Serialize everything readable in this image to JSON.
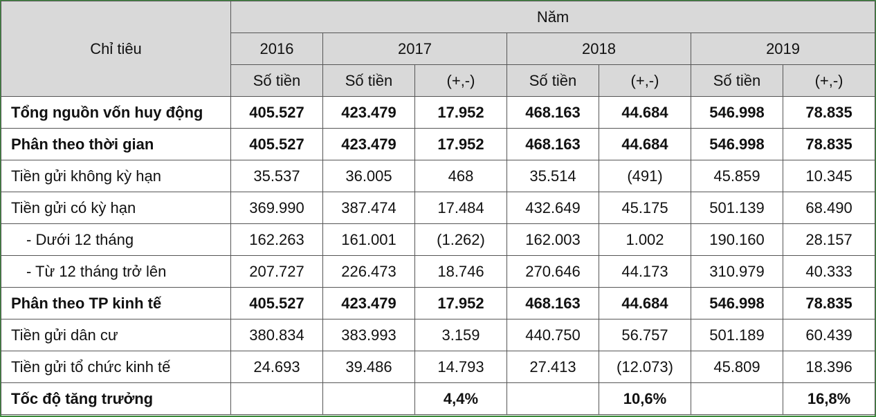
{
  "header": {
    "indicator": "Chỉ tiêu",
    "nam": "Năm",
    "years": [
      "2016",
      "2017",
      "2018",
      "2019"
    ],
    "so_tien": "Số tiền",
    "delta": "(+,-)"
  },
  "rows": [
    {
      "label": "Tổng nguồn vốn huy động",
      "bold": true,
      "v": [
        "405.527",
        "423.479",
        "17.952",
        "468.163",
        "44.684",
        "546.998",
        "78.835"
      ]
    },
    {
      "label": "Phân theo thời gian",
      "bold": true,
      "v": [
        "405.527",
        "423.479",
        "17.952",
        "468.163",
        "44.684",
        "546.998",
        "78.835"
      ]
    },
    {
      "label": "Tiền gửi không kỳ hạn",
      "bold": false,
      "v": [
        "35.537",
        "36.005",
        "468",
        "35.514",
        "(491)",
        "45.859",
        "10.345"
      ]
    },
    {
      "label": "Tiền gửi có kỳ hạn",
      "bold": false,
      "v": [
        "369.990",
        "387.474",
        "17.484",
        "432.649",
        "45.175",
        "501.139",
        "68.490"
      ]
    },
    {
      "label": "- Dưới 12 tháng",
      "bold": false,
      "sub": true,
      "v": [
        "162.263",
        "161.001",
        "(1.262)",
        "162.003",
        "1.002",
        "190.160",
        "28.157"
      ]
    },
    {
      "label": "- Từ 12 tháng trở lên",
      "bold": false,
      "sub": true,
      "v": [
        "207.727",
        "226.473",
        "18.746",
        "270.646",
        "44.173",
        "310.979",
        "40.333"
      ]
    },
    {
      "label": "Phân theo TP kinh tế",
      "bold": true,
      "v": [
        "405.527",
        "423.479",
        "17.952",
        "468.163",
        "44.684",
        "546.998",
        "78.835"
      ]
    },
    {
      "label": "Tiền gửi dân cư",
      "bold": false,
      "v": [
        "380.834",
        "383.993",
        "3.159",
        "440.750",
        "56.757",
        "501.189",
        "60.439"
      ]
    },
    {
      "label": "Tiền gửi tổ chức kinh tế",
      "bold": false,
      "v": [
        "24.693",
        "39.486",
        "14.793",
        "27.413",
        "(12.073)",
        "45.809",
        "18.396"
      ]
    },
    {
      "label": "Tốc độ tăng trưởng",
      "bold": true,
      "v": [
        "",
        "",
        "4,4%",
        "",
        "10,6%",
        "",
        "16,8%"
      ]
    }
  ]
}
